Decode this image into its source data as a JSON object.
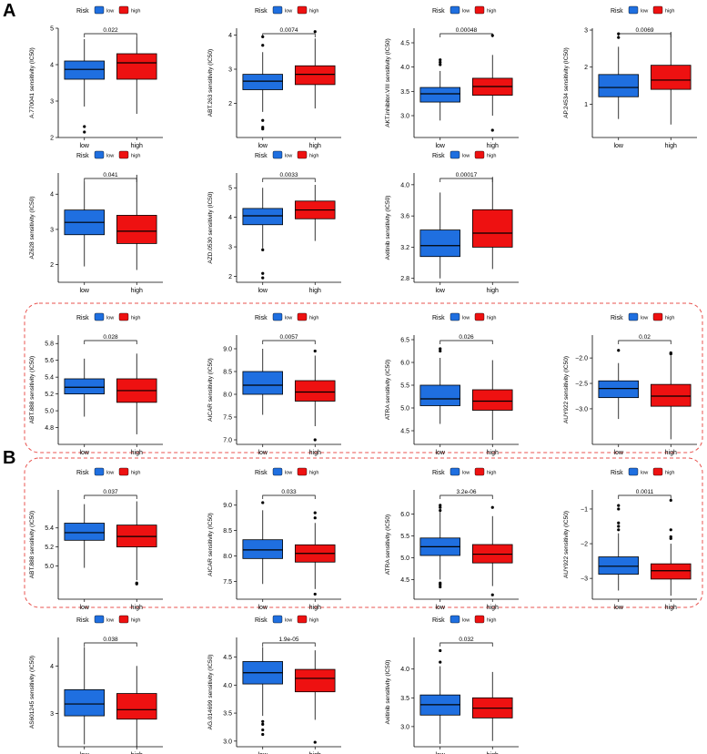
{
  "panels": [
    {
      "letter": "A"
    },
    {
      "letter": "B"
    }
  ],
  "legend": {
    "title": "Risk",
    "low_label": "low",
    "high_label": "high"
  },
  "colors": {
    "low": "#1f6fe0",
    "high": "#ee1111",
    "highlight": "#e8534f"
  },
  "chart_data": [
    {
      "type": "box",
      "ylabel": "A.770041 sensitivity (IC50)",
      "categories": [
        "low",
        "high"
      ],
      "ylim": [
        2,
        5
      ],
      "yticks": [
        2,
        3,
        4,
        5
      ],
      "p_value": "0.022",
      "series": [
        {
          "name": "low",
          "box": {
            "whislo": 2.85,
            "q1": 3.6,
            "med": 3.87,
            "q3": 4.1,
            "whishi": 4.7
          },
          "outliers": [
            2.3,
            2.15
          ]
        },
        {
          "name": "high",
          "box": {
            "whislo": 2.65,
            "q1": 3.6,
            "med": 4.05,
            "q3": 4.3,
            "whishi": 4.75
          },
          "outliers": []
        }
      ]
    },
    {
      "type": "box",
      "ylabel": "ABT.263 sensitivity (IC50)",
      "categories": [
        "low",
        "high"
      ],
      "ylim": [
        1,
        4.2
      ],
      "yticks": [
        2,
        3,
        4
      ],
      "p_value": "0.0074",
      "series": [
        {
          "name": "low",
          "box": {
            "whislo": 1.75,
            "q1": 2.4,
            "med": 2.65,
            "q3": 2.85,
            "whishi": 3.5
          },
          "outliers": [
            3.95,
            3.7,
            1.5,
            1.3,
            1.25
          ]
        },
        {
          "name": "high",
          "box": {
            "whislo": 1.85,
            "q1": 2.55,
            "med": 2.85,
            "q3": 3.1,
            "whishi": 3.9
          },
          "outliers": [
            4.1
          ]
        }
      ]
    },
    {
      "type": "box",
      "ylabel": "AKT.inhibitor.VIII sensitivity (IC50)",
      "categories": [
        "low",
        "high"
      ],
      "ylim": [
        2.55,
        4.8
      ],
      "yticks": [
        3.0,
        3.5,
        4.0,
        4.5
      ],
      "p_value": "0.00048",
      "series": [
        {
          "name": "low",
          "box": {
            "whislo": 2.9,
            "q1": 3.28,
            "med": 3.45,
            "q3": 3.58,
            "whishi": 3.92
          },
          "outliers": [
            4.15,
            4.1,
            4.05
          ]
        },
        {
          "name": "high",
          "box": {
            "whislo": 3.0,
            "q1": 3.42,
            "med": 3.6,
            "q3": 3.77,
            "whishi": 4.25
          },
          "outliers": [
            4.65,
            2.7
          ]
        }
      ]
    },
    {
      "type": "box",
      "ylabel": "AP.24534 sensitivity (IC50)",
      "categories": [
        "low",
        "high"
      ],
      "ylim": [
        0.1,
        3.05
      ],
      "yticks": [
        1,
        2,
        3
      ],
      "p_value": "0.0069",
      "series": [
        {
          "name": "low",
          "box": {
            "whislo": 0.6,
            "q1": 1.2,
            "med": 1.45,
            "q3": 1.8,
            "whishi": 2.55
          },
          "outliers": [
            2.9,
            2.8
          ]
        },
        {
          "name": "high",
          "box": {
            "whislo": 0.45,
            "q1": 1.4,
            "med": 1.65,
            "q3": 2.05,
            "whishi": 2.95
          },
          "outliers": []
        }
      ]
    },
    {
      "type": "box",
      "ylabel": "AZ628 sensitivity (IC50)",
      "categories": [
        "low",
        "high"
      ],
      "ylim": [
        1.5,
        4.6
      ],
      "yticks": [
        2,
        3,
        4
      ],
      "p_value": "0.041",
      "series": [
        {
          "name": "low",
          "box": {
            "whislo": 1.95,
            "q1": 2.85,
            "med": 3.2,
            "q3": 3.55,
            "whishi": 4.35
          },
          "outliers": []
        },
        {
          "name": "high",
          "box": {
            "whislo": 1.85,
            "q1": 2.6,
            "med": 2.95,
            "q3": 3.4,
            "whishi": 4.55
          },
          "outliers": []
        }
      ]
    },
    {
      "type": "box",
      "ylabel": "AZD.0530 sensitivity (IC50)",
      "categories": [
        "low",
        "high"
      ],
      "ylim": [
        1.8,
        5.5
      ],
      "yticks": [
        2,
        3,
        4,
        5
      ],
      "p_value": "0.0033",
      "series": [
        {
          "name": "low",
          "box": {
            "whislo": 2.95,
            "q1": 3.75,
            "med": 4.05,
            "q3": 4.3,
            "whishi": 5.0
          },
          "outliers": [
            2.9,
            2.1,
            1.95
          ]
        },
        {
          "name": "high",
          "box": {
            "whislo": 3.2,
            "q1": 3.95,
            "med": 4.25,
            "q3": 4.55,
            "whishi": 5.1
          },
          "outliers": []
        }
      ]
    },
    {
      "type": "box",
      "ylabel": "Axitinib sensitivity (IC50)",
      "categories": [
        "low",
        "high"
      ],
      "ylim": [
        2.75,
        4.15
      ],
      "yticks": [
        2.8,
        3.2,
        3.6,
        4.0
      ],
      "p_value": "0.00017",
      "series": [
        {
          "name": "low",
          "box": {
            "whislo": 2.8,
            "q1": 3.08,
            "med": 3.22,
            "q3": 3.42,
            "whishi": 3.9
          },
          "outliers": []
        },
        {
          "name": "high",
          "box": {
            "whislo": 2.92,
            "q1": 3.2,
            "med": 3.38,
            "q3": 3.68,
            "whishi": 4.1
          },
          "outliers": []
        }
      ]
    },
    {
      "type": "box",
      "ylabel": "ABT.888 sensitivity (IC50)",
      "categories": [
        "low",
        "high"
      ],
      "ylim": [
        4.6,
        5.9
      ],
      "yticks": [
        4.8,
        5.0,
        5.2,
        5.4,
        5.6,
        5.8
      ],
      "p_value": "0.028",
      "series": [
        {
          "name": "low",
          "box": {
            "whislo": 4.93,
            "q1": 5.2,
            "med": 5.28,
            "q3": 5.38,
            "whishi": 5.62
          },
          "outliers": []
        },
        {
          "name": "high",
          "box": {
            "whislo": 4.72,
            "q1": 5.1,
            "med": 5.24,
            "q3": 5.38,
            "whishi": 5.68
          },
          "outliers": []
        }
      ]
    },
    {
      "type": "box",
      "ylabel": "AICAR sensitivity (IC50)",
      "categories": [
        "low",
        "high"
      ],
      "ylim": [
        6.9,
        9.3
      ],
      "yticks": [
        7.0,
        7.5,
        8.0,
        8.5,
        9.0
      ],
      "p_value": "0.0057",
      "series": [
        {
          "name": "low",
          "box": {
            "whislo": 7.55,
            "q1": 8.0,
            "med": 8.2,
            "q3": 8.5,
            "whishi": 9.0
          },
          "outliers": []
        },
        {
          "name": "high",
          "box": {
            "whislo": 7.3,
            "q1": 7.85,
            "med": 8.05,
            "q3": 8.3,
            "whishi": 8.85
          },
          "outliers": [
            8.95,
            7.0
          ]
        }
      ]
    },
    {
      "type": "box",
      "ylabel": "ATRA sensitivity (IC50)",
      "categories": [
        "low",
        "high"
      ],
      "ylim": [
        4.2,
        6.6
      ],
      "yticks": [
        4.5,
        5.0,
        5.5,
        6.0,
        6.5
      ],
      "p_value": "0.026",
      "series": [
        {
          "name": "low",
          "box": {
            "whislo": 4.65,
            "q1": 5.05,
            "med": 5.2,
            "q3": 5.5,
            "whishi": 6.1
          },
          "outliers": [
            6.3,
            6.25
          ]
        },
        {
          "name": "high",
          "box": {
            "whislo": 4.3,
            "q1": 4.95,
            "med": 5.15,
            "q3": 5.4,
            "whishi": 6.05
          },
          "outliers": []
        }
      ]
    },
    {
      "type": "box",
      "ylabel": "AUY922 sensitivity (IC50)",
      "categories": [
        "low",
        "high"
      ],
      "ylim": [
        -3.7,
        -1.55
      ],
      "yticks": [
        -3.0,
        -2.5,
        -2.0
      ],
      "p_value": "0.02",
      "series": [
        {
          "name": "low",
          "box": {
            "whislo": -3.2,
            "q1": -2.78,
            "med": -2.6,
            "q3": -2.45,
            "whishi": -2.1
          },
          "outliers": [
            -1.85
          ]
        },
        {
          "name": "high",
          "box": {
            "whislo": -3.6,
            "q1": -2.95,
            "med": -2.75,
            "q3": -2.52,
            "whishi": -1.95
          },
          "outliers": [
            -1.9,
            -1.92
          ]
        }
      ]
    },
    {
      "type": "box",
      "ylabel": "ABT.888 sensitivity (IC50)",
      "categories": [
        "low",
        "high"
      ],
      "ylim": [
        4.65,
        5.8
      ],
      "yticks": [
        5.0,
        5.2,
        5.4
      ],
      "p_value": "0.037",
      "series": [
        {
          "name": "low",
          "box": {
            "whislo": 4.98,
            "q1": 5.27,
            "med": 5.35,
            "q3": 5.45,
            "whishi": 5.65
          },
          "outliers": []
        },
        {
          "name": "high",
          "box": {
            "whislo": 4.85,
            "q1": 5.2,
            "med": 5.31,
            "q3": 5.43,
            "whishi": 5.68
          },
          "outliers": [
            4.82,
            4.81
          ]
        }
      ]
    },
    {
      "type": "box",
      "ylabel": "AICAR sensitivity (IC50)",
      "categories": [
        "low",
        "high"
      ],
      "ylim": [
        7.15,
        9.3
      ],
      "yticks": [
        7.5,
        8.0,
        8.5,
        9.0
      ],
      "p_value": "0.033",
      "series": [
        {
          "name": "low",
          "box": {
            "whislo": 7.45,
            "q1": 7.95,
            "med": 8.12,
            "q3": 8.32,
            "whishi": 8.9
          },
          "outliers": [
            9.05
          ]
        },
        {
          "name": "high",
          "box": {
            "whislo": 7.35,
            "q1": 7.88,
            "med": 8.05,
            "q3": 8.22,
            "whishi": 8.65
          },
          "outliers": [
            8.85,
            8.75,
            7.25
          ]
        }
      ]
    },
    {
      "type": "box",
      "ylabel": "ATRA sensitivity (IC50)",
      "categories": [
        "low",
        "high"
      ],
      "ylim": [
        4.05,
        6.55
      ],
      "yticks": [
        4.5,
        5.0,
        5.5,
        6.0
      ],
      "p_value": "3.2e-06",
      "series": [
        {
          "name": "low",
          "box": {
            "whislo": 4.5,
            "q1": 5.05,
            "med": 5.25,
            "q3": 5.45,
            "whishi": 6.05
          },
          "outliers": [
            6.2,
            6.15,
            6.08,
            4.42,
            4.38,
            4.33
          ]
        },
        {
          "name": "high",
          "box": {
            "whislo": 4.35,
            "q1": 4.88,
            "med": 5.08,
            "q3": 5.3,
            "whishi": 5.95
          },
          "outliers": [
            6.15,
            4.15
          ]
        }
      ]
    },
    {
      "type": "box",
      "ylabel": "AUY922 sensitivity (IC50)",
      "categories": [
        "low",
        "high"
      ],
      "ylim": [
        -3.6,
        -0.45
      ],
      "yticks": [
        -3,
        -2,
        -1
      ],
      "p_value": "0.0011",
      "series": [
        {
          "name": "low",
          "box": {
            "whislo": -3.35,
            "q1": -2.88,
            "med": -2.65,
            "q3": -2.38,
            "whishi": -1.7
          },
          "outliers": [
            -0.9,
            -1.0,
            -1.4,
            -1.5,
            -1.6
          ]
        },
        {
          "name": "high",
          "box": {
            "whislo": -3.5,
            "q1": -3.02,
            "med": -2.78,
            "q3": -2.58,
            "whishi": -2.0
          },
          "outliers": [
            -0.75,
            -1.6,
            -1.8,
            -1.85
          ]
        }
      ]
    },
    {
      "type": "box",
      "ylabel": "AS601245 sensitivity (IC50)",
      "categories": [
        "low",
        "high"
      ],
      "ylim": [
        2.3,
        4.6
      ],
      "yticks": [
        3,
        4
      ],
      "p_value": "0.038",
      "series": [
        {
          "name": "low",
          "box": {
            "whislo": 2.35,
            "q1": 2.95,
            "med": 3.2,
            "q3": 3.5,
            "whishi": 4.4
          },
          "outliers": []
        },
        {
          "name": "high",
          "box": {
            "whislo": 2.3,
            "q1": 2.88,
            "med": 3.08,
            "q3": 3.42,
            "whishi": 4.0
          },
          "outliers": []
        }
      ]
    },
    {
      "type": "box",
      "ylabel": "AG.014699 sensitivity (IC50)",
      "categories": [
        "low",
        "high"
      ],
      "ylim": [
        2.9,
        4.85
      ],
      "yticks": [
        3.0,
        3.5,
        4.0,
        4.5
      ],
      "p_value": "1.9e-05",
      "series": [
        {
          "name": "low",
          "box": {
            "whislo": 3.45,
            "q1": 4.02,
            "med": 4.22,
            "q3": 4.42,
            "whishi": 4.68
          },
          "outliers": [
            3.35,
            3.3,
            3.2,
            3.12
          ]
        },
        {
          "name": "high",
          "box": {
            "whislo": 3.38,
            "q1": 3.88,
            "med": 4.12,
            "q3": 4.28,
            "whishi": 4.62
          },
          "outliers": [
            2.98
          ]
        }
      ]
    },
    {
      "type": "box",
      "ylabel": "Axitinib sensitivity (IC50)",
      "categories": [
        "low",
        "high"
      ],
      "ylim": [
        2.65,
        4.55
      ],
      "yticks": [
        3.0,
        3.5,
        4.0
      ],
      "p_value": "0.032",
      "series": [
        {
          "name": "low",
          "box": {
            "whislo": 2.7,
            "q1": 3.2,
            "med": 3.38,
            "q3": 3.55,
            "whishi": 4.05
          },
          "outliers": [
            4.32,
            4.12
          ]
        },
        {
          "name": "high",
          "box": {
            "whislo": 2.75,
            "q1": 3.15,
            "med": 3.32,
            "q3": 3.5,
            "whishi": 3.95
          },
          "outliers": []
        }
      ]
    }
  ]
}
